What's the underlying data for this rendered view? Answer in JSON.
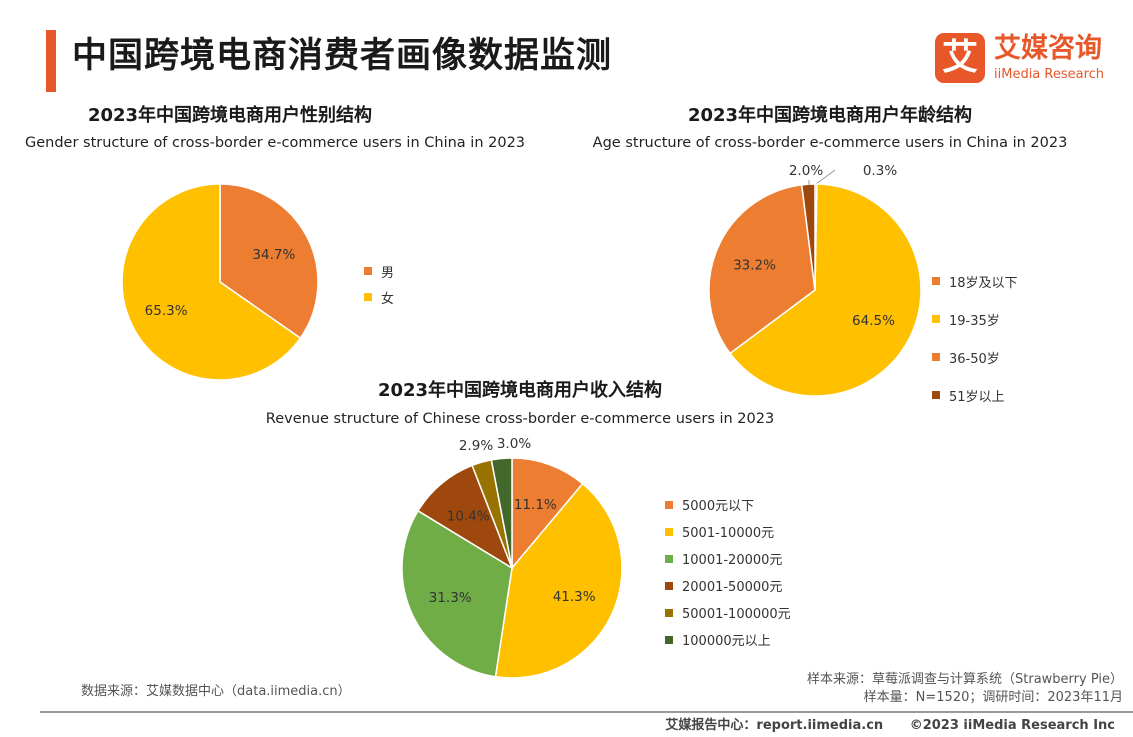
{
  "page": {
    "title": "中国跨境电商消费者画像数据监测",
    "logo_mark": "艾",
    "logo_cn": "艾媒咨询",
    "logo_en": "iiMedia Research"
  },
  "charts": [
    {
      "title": "2023年中国跨境电商用户性别结构",
      "subtitle": "Gender structure of cross-border e-commerce users in China in 2023"
    },
    {
      "title": "2023年中国跨境电商用户年龄结构",
      "subtitle": "Age structure of cross-border e-commerce users in China in 2023"
    },
    {
      "title": "2023年中国跨境电商用户收入结构",
      "subtitle": "Revenue structure of Chinese cross-border e-commerce users in 2023"
    }
  ],
  "chart_data": [
    {
      "type": "pie",
      "title": "2023年中国跨境电商用户性别结构",
      "subtitle": "Gender structure of cross-border e-commerce users in China in 2023",
      "categories": [
        "男",
        "女"
      ],
      "values": [
        34.7,
        65.3
      ],
      "labels": [
        "34.7%",
        "65.3%"
      ],
      "colors": [
        "#ed7d31",
        "#ffc000"
      ],
      "legend": "right"
    },
    {
      "type": "pie",
      "title": "2023年中国跨境电商用户年龄结构",
      "subtitle": "Age structure of cross-border e-commerce users in China in 2023",
      "categories": [
        "18岁及以下",
        "19-35岁",
        "36-50岁",
        "51岁以上"
      ],
      "values": [
        0.3,
        64.5,
        33.2,
        2.0
      ],
      "labels": [
        "0.3%",
        "64.5%",
        "33.2%",
        "2.0%"
      ],
      "colors": [
        "#ed7d31",
        "#ffc000",
        "#ed7d31",
        "#9e480e"
      ],
      "legend": "right"
    },
    {
      "type": "pie",
      "title": "2023年中国跨境电商用户收入结构",
      "subtitle": "Revenue structure of Chinese cross-border e-commerce users in 2023",
      "categories": [
        "5000元以下",
        "5001-10000元",
        "10001-20000元",
        "20001-50000元",
        "50001-100000元",
        "100000元以上"
      ],
      "values": [
        11.1,
        41.3,
        31.3,
        10.4,
        2.9,
        3.0
      ],
      "labels": [
        "11.1%",
        "41.3%",
        "31.3%",
        "10.4%",
        "2.9%",
        "3.0%"
      ],
      "colors": [
        "#ed7d31",
        "#ffc000",
        "#70ad47",
        "#9e480e",
        "#997300",
        "#43682b"
      ],
      "legend": "right"
    }
  ],
  "footer": {
    "data_source": "数据来源：艾媒数据中心（data.iimedia.cn）",
    "sample_source": "样本来源：草莓派调查与计算系统（Strawberry Pie）",
    "sample_info": "样本量：N=1520；调研时间：2023年11月",
    "report_center": "艾媒报告中心：report.iimedia.cn",
    "copyright": "©2023  iiMedia Research  Inc"
  }
}
